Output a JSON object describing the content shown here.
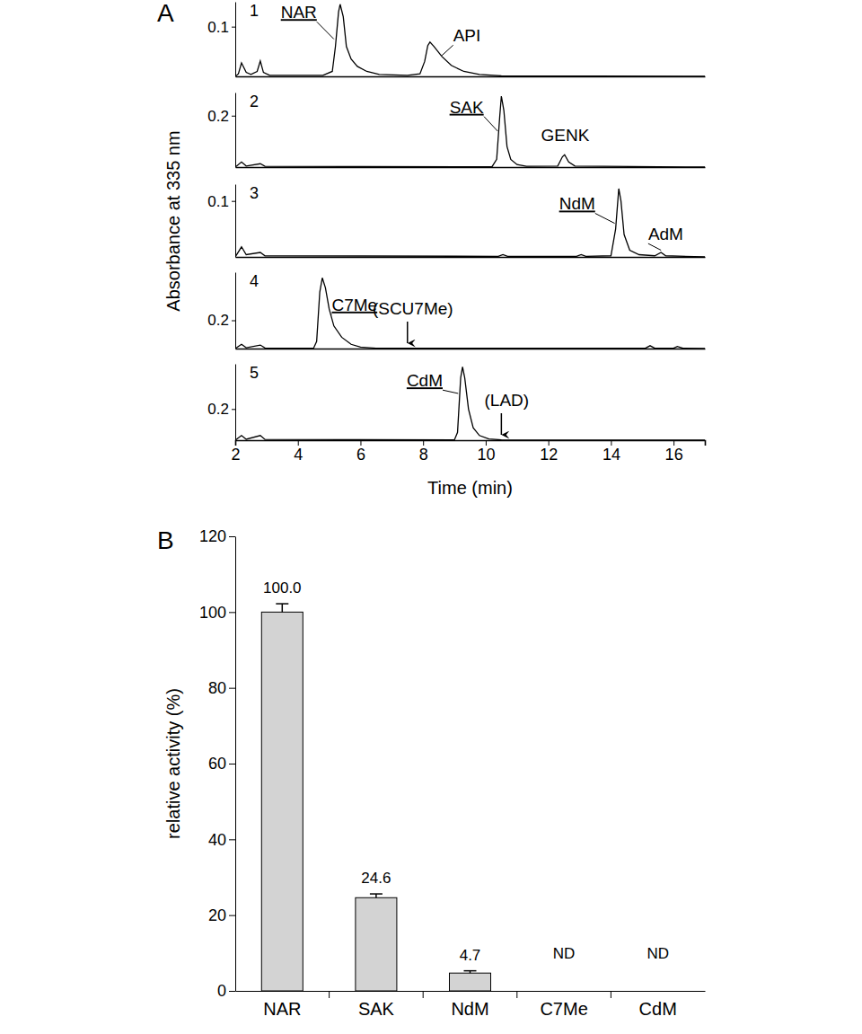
{
  "chart_data": [
    {
      "type": "line",
      "figure_label": "A",
      "title": "1",
      "color": "#000000",
      "xlim": [
        2,
        17
      ],
      "ylim": [
        0,
        0.15
      ],
      "yticks": [
        0.1
      ],
      "x": [
        2.0,
        2.1,
        2.2,
        2.35,
        2.5,
        2.7,
        2.8,
        2.9,
        3.1,
        4.8,
        5.1,
        5.2,
        5.3,
        5.35,
        5.45,
        5.55,
        5.7,
        5.9,
        6.2,
        6.6,
        7.5,
        7.9,
        8.05,
        8.15,
        8.22,
        8.35,
        8.6,
        8.9,
        9.3,
        9.8,
        10.5,
        17.0
      ],
      "values": [
        0.0,
        0.005,
        0.027,
        0.008,
        0.004,
        0.01,
        0.031,
        0.008,
        0.002,
        0.002,
        0.01,
        0.06,
        0.13,
        0.145,
        0.12,
        0.06,
        0.035,
        0.02,
        0.01,
        0.004,
        0.002,
        0.005,
        0.03,
        0.062,
        0.069,
        0.06,
        0.04,
        0.022,
        0.01,
        0.004,
        0.001,
        0.0
      ],
      "annotations": [
        {
          "text": "NAR",
          "x": 4.03,
          "y": 0.129,
          "point": [
            5.15,
            0.075
          ]
        },
        {
          "text": "API",
          "x": 9.4,
          "y": 0.082,
          "point": [
            8.6,
            0.042
          ]
        }
      ]
    },
    {
      "type": "line",
      "title": "2",
      "color": "#000000",
      "xlim": [
        2,
        17
      ],
      "ylim": [
        0,
        0.29
      ],
      "yticks": [
        0.2
      ],
      "x": [
        2.0,
        2.2,
        2.35,
        2.8,
        2.95,
        10.2,
        10.35,
        10.45,
        10.5,
        10.58,
        10.68,
        10.8,
        11.0,
        11.3,
        12.3,
        12.45,
        12.52,
        12.65,
        12.85,
        17.0
      ],
      "values": [
        0.0,
        0.02,
        0.004,
        0.013,
        0.003,
        0.001,
        0.03,
        0.2,
        0.276,
        0.22,
        0.08,
        0.03,
        0.01,
        0.003,
        0.004,
        0.04,
        0.048,
        0.02,
        0.004,
        0.0
      ],
      "annotations": [
        {
          "text": "SAK",
          "x": 9.39,
          "y": 0.234,
          "point": [
            10.38,
            0.14
          ]
        },
        {
          "text": "GENK",
          "x": 12.54,
          "y": 0.124
        }
      ]
    },
    {
      "type": "line",
      "title": "3",
      "color": "#000000",
      "ylabel": "Absorbance at 335 nm",
      "xlim": [
        2,
        17
      ],
      "ylim": [
        0,
        0.13
      ],
      "yticks": [
        0.1
      ],
      "x": [
        2.0,
        2.2,
        2.35,
        2.8,
        2.95,
        10.4,
        10.55,
        10.7,
        12.9,
        13.05,
        13.2,
        14.0,
        14.15,
        14.25,
        14.32,
        14.42,
        14.6,
        14.9,
        15.4,
        15.6,
        15.75,
        17.0
      ],
      "values": [
        0.0,
        0.018,
        0.004,
        0.008,
        0.002,
        0.001,
        0.004,
        0.001,
        0.001,
        0.004,
        0.001,
        0.002,
        0.05,
        0.122,
        0.1,
        0.04,
        0.012,
        0.004,
        0.002,
        0.008,
        0.002,
        0.0
      ],
      "annotations": [
        {
          "text": "NdM",
          "x": 12.92,
          "y": 0.095,
          "point": [
            14.12,
            0.06
          ]
        },
        {
          "text": "AdM",
          "x": 15.75,
          "y": 0.041,
          "point": [
            15.6,
            0.012
          ]
        }
      ]
    },
    {
      "type": "line",
      "title": "4",
      "color": "#000000",
      "xlim": [
        2,
        17
      ],
      "ylim": [
        0,
        0.54
      ],
      "yticks": [
        0.2
      ],
      "x": [
        2.0,
        2.2,
        2.35,
        2.8,
        2.95,
        4.5,
        4.6,
        4.7,
        4.78,
        4.88,
        5.0,
        5.15,
        5.4,
        5.7,
        6.0,
        6.5,
        15.1,
        15.25,
        15.4,
        16.0,
        16.12,
        16.3,
        17.0
      ],
      "values": [
        0.0,
        0.03,
        0.006,
        0.025,
        0.004,
        0.002,
        0.05,
        0.4,
        0.5,
        0.43,
        0.28,
        0.16,
        0.08,
        0.03,
        0.01,
        0.003,
        0.002,
        0.02,
        0.002,
        0.002,
        0.015,
        0.002,
        0.0
      ],
      "annotations": [
        {
          "text": "C7Me",
          "x": 5.81,
          "y": 0.31,
          "point": [
            5.05,
            0.24
          ]
        }
      ],
      "markers": [
        {
          "text": "(SCU7Me)",
          "x": 7.5
        }
      ]
    },
    {
      "type": "line",
      "title": "5",
      "color": "#000000",
      "xlabel": "Time (min)",
      "xlim": [
        2,
        17
      ],
      "ylim": [
        0,
        0.49
      ],
      "yticks": [
        0.2
      ],
      "xticks": [
        2,
        4,
        6,
        8,
        10,
        12,
        14,
        16
      ],
      "x": [
        2.0,
        2.2,
        2.35,
        2.8,
        2.95,
        9.0,
        9.1,
        9.2,
        9.26,
        9.33,
        9.45,
        9.6,
        9.8,
        10.1,
        10.5,
        17.0
      ],
      "values": [
        0.0,
        0.03,
        0.006,
        0.03,
        0.005,
        0.002,
        0.05,
        0.4,
        0.47,
        0.4,
        0.2,
        0.08,
        0.03,
        0.008,
        0.002,
        0.0
      ],
      "annotations": [
        {
          "text": "CdM",
          "x": 8.05,
          "y": 0.383,
          "point": [
            9.12,
            0.3
          ]
        }
      ],
      "markers": [
        {
          "text": "(LAD)",
          "x": 10.5
        }
      ]
    },
    {
      "type": "bar",
      "figure_label": "B",
      "ylabel": "relative activity (%)",
      "color": "#d3d3d3",
      "categories": [
        "NAR",
        "SAK",
        "NdM",
        "C7Me",
        "CdM"
      ],
      "values": [
        100.0,
        24.6,
        4.7,
        null,
        null
      ],
      "errors": [
        2.2,
        1.0,
        0.6,
        null,
        null
      ],
      "value_labels": [
        "100.0",
        "24.6",
        "4.7",
        "ND",
        "ND"
      ],
      "data_labels": true,
      "ylim": [
        0,
        120
      ],
      "yticks": [
        0,
        20,
        40,
        60,
        80,
        100,
        120
      ]
    }
  ]
}
